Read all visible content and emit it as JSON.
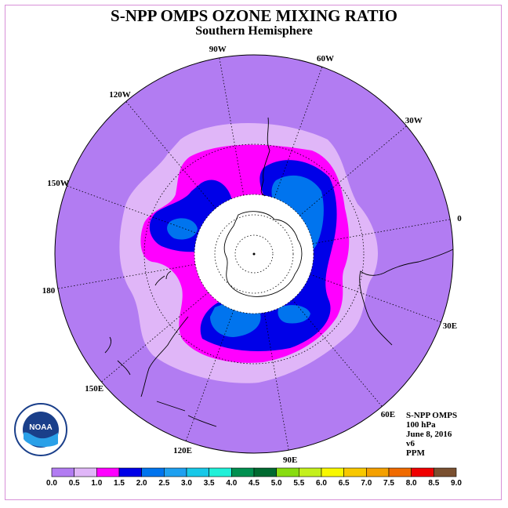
{
  "title": "S-NPP OMPS OZONE MIXING RATIO",
  "subtitle": "Southern Hemisphere",
  "longitude_labels": [
    "90W",
    "60W",
    "30W",
    "0",
    "30E",
    "60E",
    "90E",
    "120E",
    "150E",
    "180",
    "150W",
    "120W"
  ],
  "info": {
    "instrument": "S-NPP OMPS",
    "level": "100 hPa",
    "date": "June 8, 2016",
    "version": "v6",
    "units": "PPM"
  },
  "logo": {
    "name": "noaa-logo",
    "text": "NOAA"
  },
  "colorbar": {
    "ticks": [
      "0.0",
      "0.5",
      "1.0",
      "1.5",
      "2.0",
      "2.5",
      "3.0",
      "3.5",
      "4.0",
      "4.5",
      "5.0",
      "5.5",
      "6.0",
      "6.5",
      "7.0",
      "7.5",
      "8.0",
      "8.5",
      "9.0"
    ],
    "colors": [
      "#b27cf2",
      "#e0b6f8",
      "#ff00ff",
      "#0000e8",
      "#0074ee",
      "#1ea0f0",
      "#18c8e8",
      "#20f0d8",
      "#009050",
      "#006a30",
      "#88dc10",
      "#c4f01c",
      "#f8f800",
      "#f8c800",
      "#f4a000",
      "#f06a00",
      "#f00000",
      "#7a5030"
    ]
  },
  "colors": {
    "background_level": "#b27cf2",
    "border": "#d890d8"
  }
}
